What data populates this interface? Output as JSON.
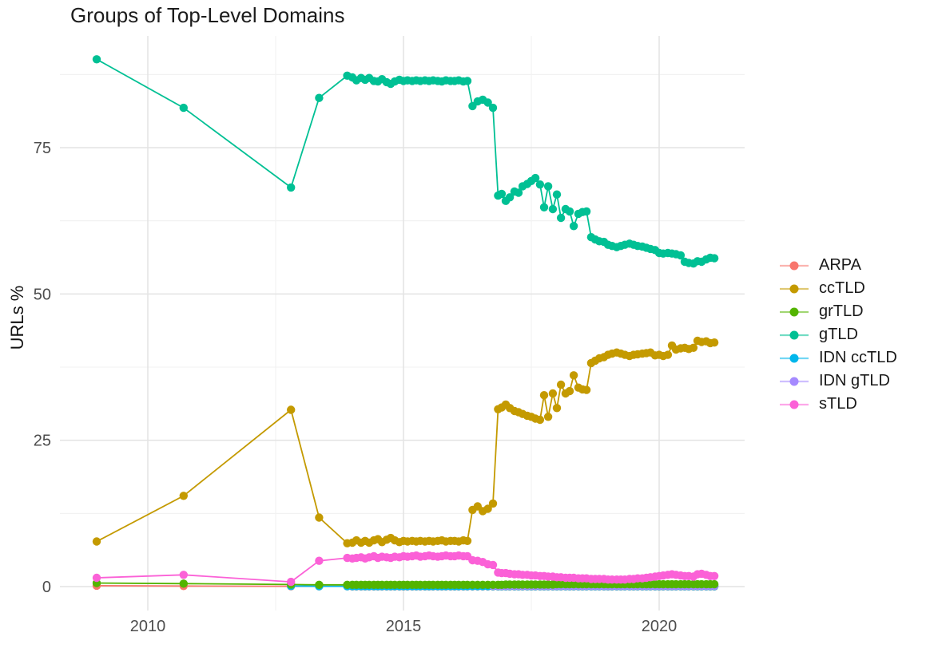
{
  "title": "Groups of Top-Level Domains",
  "chart_data": {
    "type": "line",
    "title": "Groups of Top-Level Domains",
    "xlabel": "",
    "ylabel": "URLs %",
    "xlim": [
      2008.3,
      2021.7
    ],
    "ylim": [
      -3,
      94
    ],
    "grid": true,
    "legend_position": "right",
    "x_ticks": [
      {
        "label": "2010",
        "value": 2010
      },
      {
        "label": "2015",
        "value": 2015
      },
      {
        "label": "2020",
        "value": 2020
      }
    ],
    "y_ticks": [
      {
        "label": "0",
        "value": 0
      },
      {
        "label": "25",
        "value": 25
      },
      {
        "label": "50",
        "value": 50
      },
      {
        "label": "75",
        "value": 75
      }
    ],
    "x": [
      2009.0,
      2010.7,
      2012.8,
      2013.35,
      2013.9,
      2014.0,
      2014.08,
      2014.17,
      2014.25,
      2014.33,
      2014.42,
      2014.5,
      2014.58,
      2014.67,
      2014.75,
      2014.83,
      2014.92,
      2015.0,
      2015.08,
      2015.17,
      2015.25,
      2015.33,
      2015.42,
      2015.5,
      2015.58,
      2015.67,
      2015.75,
      2015.83,
      2015.92,
      2016.0,
      2016.08,
      2016.17,
      2016.25,
      2016.35,
      2016.45,
      2016.55,
      2016.65,
      2016.75,
      2016.85,
      2016.92,
      2017.0,
      2017.08,
      2017.17,
      2017.25,
      2017.33,
      2017.42,
      2017.5,
      2017.58,
      2017.67,
      2017.75,
      2017.83,
      2017.92,
      2018.0,
      2018.08,
      2018.17,
      2018.25,
      2018.33,
      2018.42,
      2018.5,
      2018.58,
      2018.67,
      2018.75,
      2018.83,
      2018.92,
      2019.0,
      2019.08,
      2019.17,
      2019.25,
      2019.33,
      2019.42,
      2019.5,
      2019.58,
      2019.67,
      2019.75,
      2019.83,
      2019.92,
      2020.0,
      2020.08,
      2020.17,
      2020.25,
      2020.33,
      2020.42,
      2020.5,
      2020.58,
      2020.67,
      2020.75,
      2020.83,
      2020.92,
      2021.0,
      2021.08
    ],
    "series": [
      {
        "name": "ARPA",
        "color": "#F8766D",
        "y": [
          0.15,
          0.1,
          0.05,
          0.05,
          0.05,
          0.03,
          0.03,
          0.03,
          0.03,
          0.03,
          0.03,
          0.03,
          0.03,
          0.03,
          0.03,
          0.03,
          0.03,
          0.03,
          0.03,
          0.03,
          0.03,
          0.03,
          0.03,
          0.03,
          0.03,
          0.03,
          0.03,
          0.03,
          0.03,
          0.03,
          0.03,
          0.03,
          0.03,
          0.03,
          0.03,
          0.03,
          0.03,
          0.03,
          0.03,
          0.03,
          0.03,
          0.03,
          0.03,
          0.03,
          0.03,
          0.03,
          0.03,
          0.03,
          0.03,
          0.03,
          0.03,
          0.03,
          0.03,
          0.03,
          0.03,
          0.03,
          0.03,
          0.03,
          0.03,
          0.03,
          0.03,
          0.03,
          0.03,
          0.03,
          0.03,
          0.03,
          0.03,
          0.03,
          0.03,
          0.03,
          0.03,
          0.03,
          0.03,
          0.03,
          0.03,
          0.03,
          0.03,
          0.03,
          0.03,
          0.03,
          0.03,
          0.03,
          0.03,
          0.03,
          0.03,
          0.03,
          0.03,
          0.03,
          0.03,
          0.03
        ]
      },
      {
        "name": "ccTLD",
        "color": "#C49A00",
        "y": [
          7.7,
          15.5,
          30.2,
          11.8,
          7.4,
          7.5,
          7.9,
          7.5,
          7.8,
          7.5,
          7.9,
          8.1,
          7.6,
          8.0,
          8.3,
          7.9,
          7.6,
          7.8,
          7.7,
          7.8,
          7.7,
          7.8,
          7.7,
          7.8,
          7.7,
          7.8,
          7.9,
          7.7,
          7.8,
          7.8,
          7.7,
          7.9,
          7.8,
          13.1,
          13.7,
          12.9,
          13.3,
          14.2,
          30.3,
          30.6,
          31.1,
          30.5,
          30.0,
          29.8,
          29.5,
          29.2,
          29.0,
          28.7,
          28.5,
          32.7,
          29.0,
          33.0,
          30.5,
          34.5,
          33.0,
          33.4,
          36.1,
          34.0,
          33.7,
          33.6,
          38.2,
          38.6,
          39.0,
          39.2,
          39.6,
          39.8,
          40.0,
          39.8,
          39.6,
          39.4,
          39.6,
          39.7,
          39.8,
          39.9,
          40.0,
          39.5,
          39.6,
          39.4,
          39.6,
          41.2,
          40.5,
          40.7,
          40.8,
          40.6,
          40.8,
          42.0,
          41.8,
          41.9,
          41.6,
          41.7
        ]
      },
      {
        "name": "grTLD",
        "color": "#53B400",
        "y": [
          0.6,
          0.5,
          0.35,
          0.3,
          0.3,
          0.3,
          0.3,
          0.3,
          0.3,
          0.3,
          0.3,
          0.3,
          0.3,
          0.3,
          0.3,
          0.3,
          0.3,
          0.3,
          0.3,
          0.3,
          0.3,
          0.3,
          0.3,
          0.3,
          0.3,
          0.3,
          0.3,
          0.3,
          0.3,
          0.3,
          0.3,
          0.3,
          0.3,
          0.3,
          0.3,
          0.3,
          0.3,
          0.3,
          0.3,
          0.3,
          0.35,
          0.35,
          0.35,
          0.35,
          0.35,
          0.35,
          0.35,
          0.35,
          0.35,
          0.35,
          0.35,
          0.35,
          0.4,
          0.4,
          0.4,
          0.4,
          0.4,
          0.4,
          0.4,
          0.4,
          0.4,
          0.4,
          0.4,
          0.4,
          0.4,
          0.4,
          0.4,
          0.4,
          0.4,
          0.4,
          0.4,
          0.4,
          0.4,
          0.4,
          0.4,
          0.4,
          0.4,
          0.4,
          0.4,
          0.4,
          0.4,
          0.4,
          0.4,
          0.4,
          0.4,
          0.4,
          0.4,
          0.4,
          0.4,
          0.4
        ]
      },
      {
        "name": "gTLD",
        "color": "#00C094",
        "y": [
          90.1,
          81.8,
          68.2,
          83.5,
          87.3,
          87.0,
          86.5,
          86.9,
          86.6,
          86.9,
          86.4,
          86.3,
          86.7,
          86.2,
          85.9,
          86.3,
          86.6,
          86.4,
          86.5,
          86.4,
          86.5,
          86.4,
          86.5,
          86.4,
          86.5,
          86.4,
          86.3,
          86.5,
          86.4,
          86.4,
          86.5,
          86.3,
          86.4,
          82.1,
          82.9,
          83.2,
          82.7,
          81.8,
          66.8,
          67.1,
          65.9,
          66.5,
          67.5,
          67.3,
          68.4,
          68.8,
          69.3,
          69.8,
          68.7,
          64.8,
          68.4,
          64.5,
          67.0,
          63.0,
          64.5,
          64.1,
          61.6,
          63.7,
          64.0,
          64.1,
          59.7,
          59.3,
          59.0,
          58.9,
          58.4,
          58.2,
          58.0,
          58.2,
          58.4,
          58.6,
          58.4,
          58.2,
          58.1,
          57.9,
          57.7,
          57.5,
          57.0,
          56.9,
          57.0,
          56.9,
          56.8,
          56.6,
          55.5,
          55.3,
          55.2,
          55.6,
          55.5,
          55.9,
          56.2,
          56.1
        ]
      },
      {
        "name": "IDN ccTLD",
        "color": "#00B6EB",
        "y": [
          null,
          null,
          0.1,
          0.06,
          0.05,
          0.05,
          0.05,
          0.05,
          0.05,
          0.05,
          0.05,
          0.05,
          0.05,
          0.05,
          0.05,
          0.05,
          0.05,
          0.05,
          0.05,
          0.05,
          0.05,
          0.05,
          0.05,
          0.05,
          0.05,
          0.05,
          0.05,
          0.05,
          0.05,
          0.05,
          0.05,
          0.05,
          0.05,
          0.05,
          0.05,
          0.05,
          0.05,
          0.05,
          0.05,
          0.05,
          0.05,
          0.05,
          0.05,
          0.05,
          0.05,
          0.05,
          0.05,
          0.05,
          0.05,
          0.05,
          0.05,
          0.05,
          0.05,
          0.05,
          0.05,
          0.05,
          0.05,
          0.05,
          0.05,
          0.05,
          0.05,
          0.05,
          0.05,
          0.05,
          0.05,
          0.05,
          0.05,
          0.05,
          0.05,
          0.05,
          0.05,
          0.05,
          0.05,
          0.05,
          0.05,
          0.05,
          0.05,
          0.05,
          0.05,
          0.05,
          0.05,
          0.05,
          0.05,
          0.05,
          0.05,
          0.05,
          0.05,
          0.05,
          0.05,
          0.05
        ]
      },
      {
        "name": "IDN gTLD",
        "color": "#A58AFF",
        "y": [
          null,
          null,
          null,
          null,
          null,
          null,
          null,
          null,
          null,
          null,
          null,
          null,
          null,
          null,
          null,
          null,
          null,
          null,
          null,
          null,
          null,
          null,
          null,
          null,
          null,
          null,
          null,
          null,
          null,
          null,
          null,
          null,
          null,
          null,
          null,
          null,
          null,
          0.12,
          0.12,
          0.12,
          0.12,
          0.12,
          0.12,
          0.12,
          0.12,
          0.12,
          0.12,
          0.12,
          0.12,
          0.12,
          0.12,
          0.12,
          0.12,
          0.12,
          0.12,
          0.12,
          0.12,
          0.12,
          0.12,
          0.12,
          0.12,
          0.12,
          0.12,
          0.12,
          0.12,
          0.12,
          0.12,
          0.12,
          0.12,
          0.12,
          0.12,
          0.12,
          0.12,
          0.12,
          0.12,
          0.12,
          0.12,
          0.12,
          0.12,
          0.12,
          0.12,
          0.12,
          0.12,
          0.12,
          0.12,
          0.12,
          0.12,
          0.12,
          0.12,
          0.12
        ]
      },
      {
        "name": "sTLD",
        "color": "#FB61D7",
        "y": [
          1.5,
          2.0,
          0.8,
          4.4,
          4.9,
          4.8,
          4.9,
          5.0,
          4.8,
          5.0,
          5.2,
          4.9,
          5.1,
          5.0,
          4.9,
          5.1,
          5.0,
          5.2,
          5.1,
          5.2,
          5.3,
          5.1,
          5.2,
          5.3,
          5.2,
          5.1,
          5.2,
          5.3,
          5.2,
          5.2,
          5.3,
          5.2,
          5.2,
          4.5,
          4.4,
          4.2,
          3.8,
          3.7,
          2.4,
          2.3,
          2.3,
          2.2,
          2.1,
          2.1,
          2.0,
          2.0,
          1.9,
          1.9,
          1.8,
          1.8,
          1.7,
          1.7,
          1.6,
          1.6,
          1.5,
          1.5,
          1.5,
          1.4,
          1.4,
          1.4,
          1.3,
          1.3,
          1.3,
          1.3,
          1.2,
          1.2,
          1.2,
          1.2,
          1.2,
          1.3,
          1.3,
          1.4,
          1.4,
          1.5,
          1.6,
          1.7,
          1.8,
          1.9,
          2.0,
          2.1,
          2.0,
          1.9,
          1.8,
          1.8,
          1.7,
          2.1,
          2.2,
          2.0,
          1.8,
          1.8
        ]
      }
    ]
  }
}
